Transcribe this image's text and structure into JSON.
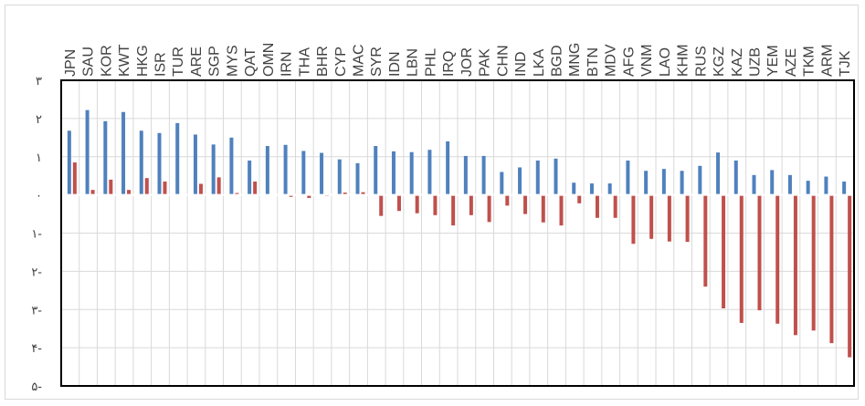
{
  "chart_data": {
    "type": "bar",
    "title": "",
    "xlabel": "",
    "ylabel": "",
    "ylim": [
      -5,
      3
    ],
    "yticks": [
      3,
      2,
      1,
      0,
      -1,
      -2,
      -3,
      -4,
      -5
    ],
    "ytick_labels": [
      "۳",
      "۲",
      "۱",
      "۰",
      "۱-",
      "۲-",
      "۳-",
      "۴-",
      "۵-"
    ],
    "grid": true,
    "legend": "none",
    "categories": [
      "JPN",
      "SAU",
      "KOR",
      "KWT",
      "HKG",
      "ISR",
      "TUR",
      "ARE",
      "SGP",
      "MYS",
      "QAT",
      "OMN",
      "IRN",
      "THA",
      "BHR",
      "CYP",
      "MAC",
      "SYR",
      "IDN",
      "LBN",
      "PHL",
      "IRQ",
      "JOR",
      "PAK",
      "CHN",
      "IND",
      "LKA",
      "BGD",
      "MNG",
      "BTN",
      "MDV",
      "AFG",
      "VNM",
      "LAO",
      "KHM",
      "RUS",
      "KGZ",
      "KAZ",
      "UZB",
      "YEM",
      "AZE",
      "TKM",
      "ARM",
      "TJK"
    ],
    "series": [
      {
        "color": "#4f81bd",
        "values": [
          1.68,
          2.22,
          1.93,
          2.17,
          1.68,
          1.62,
          1.88,
          1.58,
          1.32,
          1.5,
          0.9,
          1.28,
          1.31,
          1.15,
          1.1,
          0.93,
          0.83,
          1.28,
          1.14,
          1.12,
          1.18,
          1.4,
          1.02,
          1.02,
          0.6,
          0.72,
          0.9,
          0.95,
          0.32,
          0.3,
          0.3,
          0.9,
          0.63,
          0.68,
          0.63,
          0.76,
          1.11,
          0.9,
          0.52,
          0.65,
          0.52,
          0.37,
          0.48,
          0.35
        ]
      },
      {
        "color": "#c0504d",
        "values": [
          0.85,
          0.13,
          0.4,
          0.13,
          0.44,
          0.35,
          0.0,
          0.29,
          0.46,
          0.05,
          0.35,
          0.0,
          -0.05,
          -0.08,
          -0.03,
          0.06,
          0.07,
          -0.55,
          -0.42,
          -0.48,
          -0.53,
          -0.8,
          -0.53,
          -0.71,
          -0.28,
          -0.5,
          -0.72,
          -0.8,
          -0.22,
          -0.6,
          -0.6,
          -1.28,
          -1.15,
          -1.22,
          -1.23,
          -2.4,
          -2.97,
          -3.35,
          -3.02,
          -3.37,
          -3.67,
          -3.55,
          -3.88,
          -4.25
        ]
      }
    ]
  }
}
